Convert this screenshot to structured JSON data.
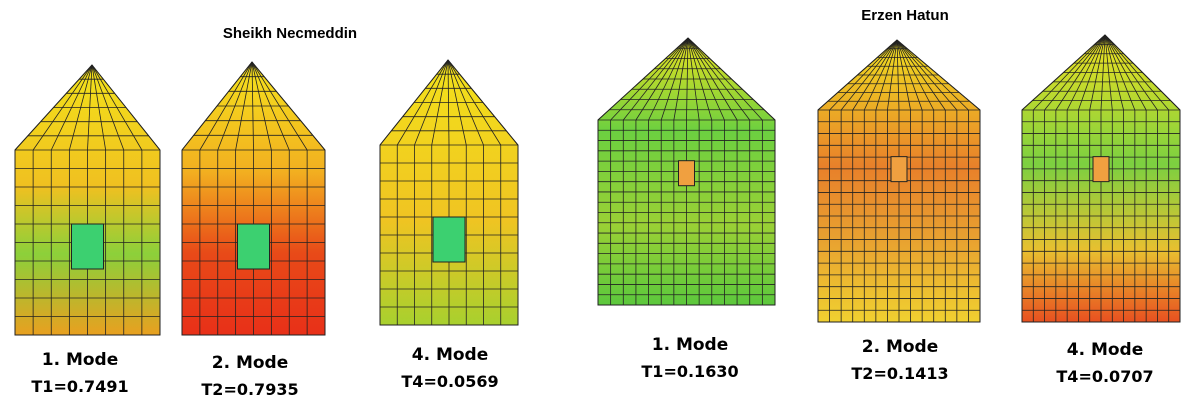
{
  "groups": [
    {
      "title": "Sheikh Necmeddin",
      "modes": [
        {
          "label": "1. Mode",
          "period": "T1=0.7491"
        },
        {
          "label": "2. Mode",
          "period": "T2=0.7935"
        },
        {
          "label": "4. Mode",
          "period": "T4=0.0569"
        }
      ]
    },
    {
      "title": "Erzen Hatun",
      "modes": [
        {
          "label": "1. Mode",
          "period": "T1=0.1630"
        },
        {
          "label": "2. Mode",
          "period": "T2=0.1413"
        },
        {
          "label": "4. Mode",
          "period": "T4=0.0707"
        }
      ]
    }
  ]
}
